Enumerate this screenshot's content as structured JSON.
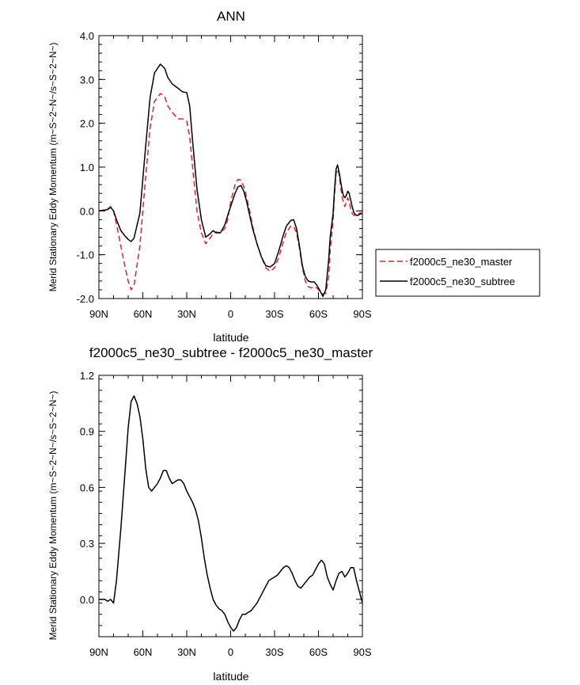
{
  "chart_data": [
    {
      "type": "line",
      "title": "ANN",
      "xlabel": "latitude",
      "ylabel": "Merid Stationary Eddy Momentum (m~S~2~N~/s~S~2~N~)",
      "xlim": [
        -90,
        90
      ],
      "ylim": [
        -2.0,
        4.0
      ],
      "xticks": [
        -90,
        -60,
        -30,
        0,
        30,
        60,
        90
      ],
      "xtick_labels": [
        "90N",
        "60N",
        "30N",
        "0",
        "30S",
        "60S",
        "90S"
      ],
      "yticks": [
        -2.0,
        -1.0,
        0.0,
        1.0,
        2.0,
        3.0,
        4.0
      ],
      "ytick_labels": [
        "-2.0",
        "-1.0",
        "0.0",
        "1.0",
        "2.0",
        "3.0",
        "4.0"
      ],
      "legend": {
        "position": "right",
        "entries": [
          "f2000c5_ne30_master",
          "f2000c5_ne30_subtree"
        ]
      },
      "series": [
        {
          "name": "f2000c5_ne30_master",
          "color": "#e8202a",
          "dash": true,
          "x": [
            -90,
            -86,
            -84,
            -82,
            -80,
            -78,
            -75,
            -72,
            -70,
            -68,
            -66,
            -62,
            -58,
            -55,
            -52,
            -48,
            -45,
            -43,
            -40,
            -36,
            -33,
            -30,
            -28,
            -26,
            -23,
            -20,
            -17,
            -14,
            -12,
            -10,
            -7,
            -4,
            -2,
            0,
            3,
            5,
            7,
            9,
            11,
            13,
            15,
            18,
            21,
            24,
            27,
            30,
            33,
            36,
            38,
            41,
            43,
            45,
            47,
            49,
            51,
            53,
            55,
            57,
            59,
            61,
            63,
            65,
            67,
            68,
            70,
            71,
            72,
            73,
            74,
            75,
            76,
            77,
            78,
            79,
            80,
            81,
            82,
            83,
            84,
            85,
            86,
            87,
            88,
            90
          ],
          "y": [
            0.0,
            0.02,
            0.05,
            0.1,
            0.0,
            -0.3,
            -0.8,
            -1.3,
            -1.6,
            -1.8,
            -1.7,
            -0.8,
            0.8,
            1.9,
            2.5,
            2.68,
            2.6,
            2.4,
            2.25,
            2.1,
            2.1,
            2.05,
            1.7,
            1.0,
            0.0,
            -0.5,
            -0.75,
            -0.62,
            -0.52,
            -0.48,
            -0.5,
            -0.4,
            -0.2,
            0.2,
            0.6,
            0.72,
            0.7,
            0.55,
            0.3,
            0.0,
            -0.35,
            -0.75,
            -1.05,
            -1.3,
            -1.38,
            -1.3,
            -1.05,
            -0.7,
            -0.5,
            -0.35,
            -0.35,
            -0.5,
            -0.85,
            -1.3,
            -1.6,
            -1.73,
            -1.76,
            -1.73,
            -1.76,
            -1.84,
            -1.9,
            -1.88,
            -1.5,
            -0.9,
            -0.2,
            0.4,
            0.85,
            0.95,
            0.85,
            0.6,
            0.35,
            0.2,
            0.1,
            0.2,
            0.3,
            0.2,
            0.05,
            -0.05,
            -0.1,
            -0.1,
            -0.1,
            -0.08,
            -0.05,
            -0.05
          ]
        },
        {
          "name": "f2000c5_ne30_subtree",
          "color": "#000000",
          "dash": false,
          "x": [
            -90,
            -86,
            -84,
            -82,
            -80,
            -78,
            -75,
            -72,
            -70,
            -68,
            -66,
            -62,
            -58,
            -55,
            -52,
            -48,
            -45,
            -43,
            -40,
            -36,
            -33,
            -30,
            -28,
            -26,
            -23,
            -20,
            -17,
            -14,
            -12,
            -10,
            -7,
            -4,
            -2,
            0,
            3,
            5,
            7,
            9,
            11,
            13,
            15,
            18,
            21,
            24,
            27,
            30,
            33,
            36,
            38,
            41,
            43,
            45,
            47,
            49,
            51,
            53,
            55,
            57,
            59,
            61,
            63,
            65,
            67,
            68,
            70,
            71,
            72,
            73,
            74,
            75,
            76,
            77,
            78,
            79,
            80,
            81,
            82,
            83,
            84,
            85,
            86,
            87,
            88,
            90
          ],
          "y": [
            0.0,
            0.02,
            0.03,
            0.08,
            0.0,
            -0.2,
            -0.45,
            -0.58,
            -0.65,
            -0.7,
            -0.62,
            -0.05,
            1.5,
            2.6,
            3.15,
            3.35,
            3.25,
            3.05,
            2.9,
            2.8,
            2.72,
            2.7,
            2.4,
            1.6,
            0.5,
            -0.2,
            -0.6,
            -0.52,
            -0.45,
            -0.5,
            -0.5,
            -0.32,
            -0.1,
            0.1,
            0.4,
            0.55,
            0.58,
            0.45,
            0.2,
            -0.1,
            -0.4,
            -0.75,
            -1.05,
            -1.25,
            -1.28,
            -1.2,
            -0.9,
            -0.55,
            -0.35,
            -0.22,
            -0.2,
            -0.4,
            -0.8,
            -1.25,
            -1.5,
            -1.6,
            -1.62,
            -1.62,
            -1.7,
            -1.82,
            -1.95,
            -1.8,
            -1.1,
            -0.6,
            -0.05,
            0.5,
            0.95,
            1.05,
            0.9,
            0.7,
            0.5,
            0.35,
            0.3,
            0.35,
            0.45,
            0.4,
            0.25,
            0.1,
            -0.02,
            -0.08,
            -0.1,
            -0.1,
            -0.08,
            -0.05
          ]
        }
      ]
    },
    {
      "type": "line",
      "title": "f2000c5_ne30_subtree - f2000c5_ne30_master",
      "xlabel": "latitude",
      "ylabel": "Merid Stationary Eddy Momentum (m~S~2~N~/s~S~2~N~)",
      "xlim": [
        -90,
        90
      ],
      "ylim": [
        -0.2,
        1.2
      ],
      "xticks": [
        -90,
        -60,
        -30,
        0,
        30,
        60,
        90
      ],
      "xtick_labels": [
        "90N",
        "60N",
        "30N",
        "0",
        "30S",
        "60S",
        "90S"
      ],
      "yticks": [
        0.0,
        0.3,
        0.6,
        0.9,
        1.2
      ],
      "ytick_labels": [
        "0.0",
        "0.3",
        "0.6",
        "0.9",
        "1.2"
      ],
      "series": [
        {
          "name": "f2000c5_ne30_subtree - f2000c5_ne30_master",
          "color": "#000000",
          "dash": false,
          "x": [
            -90,
            -86,
            -84,
            -82,
            -80,
            -78,
            -75,
            -72,
            -70,
            -68,
            -66,
            -64,
            -62,
            -60,
            -58,
            -56,
            -54,
            -52,
            -50,
            -48,
            -46,
            -44,
            -42,
            -40,
            -38,
            -36,
            -34,
            -32,
            -30,
            -28,
            -26,
            -24,
            -22,
            -20,
            -18,
            -16,
            -14,
            -12,
            -10,
            -8,
            -6,
            -4,
            -2,
            0,
            2,
            4,
            6,
            8,
            10,
            12,
            14,
            16,
            18,
            20,
            22,
            24,
            26,
            28,
            30,
            32,
            34,
            36,
            38,
            40,
            42,
            44,
            46,
            48,
            50,
            52,
            54,
            56,
            58,
            60,
            62,
            64,
            66,
            68,
            70,
            72,
            74,
            76,
            78,
            80,
            82,
            84,
            86,
            88,
            90
          ],
          "y": [
            0.0,
            0.0,
            -0.01,
            0.0,
            -0.02,
            0.1,
            0.38,
            0.7,
            0.92,
            1.06,
            1.09,
            1.05,
            0.98,
            0.86,
            0.7,
            0.6,
            0.58,
            0.6,
            0.62,
            0.65,
            0.69,
            0.69,
            0.65,
            0.62,
            0.63,
            0.64,
            0.64,
            0.62,
            0.58,
            0.55,
            0.52,
            0.48,
            0.42,
            0.33,
            0.22,
            0.13,
            0.06,
            0.0,
            -0.03,
            -0.05,
            -0.06,
            -0.08,
            -0.12,
            -0.15,
            -0.17,
            -0.15,
            -0.11,
            -0.08,
            -0.08,
            -0.07,
            -0.06,
            -0.04,
            -0.02,
            0.01,
            0.04,
            0.07,
            0.1,
            0.11,
            0.12,
            0.13,
            0.15,
            0.17,
            0.18,
            0.17,
            0.14,
            0.1,
            0.07,
            0.06,
            0.08,
            0.1,
            0.12,
            0.13,
            0.16,
            0.19,
            0.21,
            0.19,
            0.12,
            0.08,
            0.05,
            0.1,
            0.14,
            0.15,
            0.12,
            0.14,
            0.17,
            0.17,
            0.1,
            0.04,
            -0.02
          ]
        }
      ]
    }
  ]
}
